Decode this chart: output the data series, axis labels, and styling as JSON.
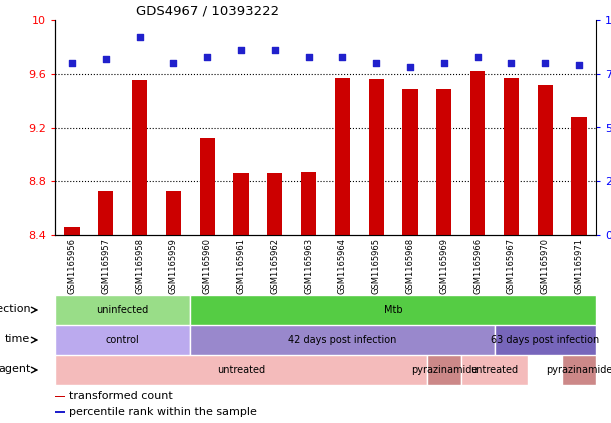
{
  "title": "GDS4967 / 10393222",
  "samples": [
    "GSM1165956",
    "GSM1165957",
    "GSM1165958",
    "GSM1165959",
    "GSM1165960",
    "GSM1165961",
    "GSM1165962",
    "GSM1165963",
    "GSM1165964",
    "GSM1165965",
    "GSM1165968",
    "GSM1165969",
    "GSM1165966",
    "GSM1165967",
    "GSM1165970",
    "GSM1165971"
  ],
  "bar_values": [
    8.46,
    8.73,
    9.55,
    8.73,
    9.12,
    8.86,
    8.86,
    8.87,
    9.57,
    9.56,
    9.49,
    9.49,
    9.62,
    9.57,
    9.52,
    9.28
  ],
  "dot_values": [
    80,
    82,
    92,
    80,
    83,
    86,
    86,
    83,
    83,
    80,
    78,
    80,
    83,
    80,
    80,
    79
  ],
  "ylim_left": [
    8.4,
    10.0
  ],
  "ylim_right": [
    0,
    100
  ],
  "yticks_left": [
    8.4,
    8.8,
    9.2,
    9.6,
    10.0
  ],
  "yticks_right": [
    0,
    25,
    50,
    75,
    100
  ],
  "bar_color": "#cc0000",
  "dot_color": "#2020cc",
  "bg_color": "#ffffff",
  "plot_bg": "#ffffff",
  "annotation_rows": [
    {
      "label": "infection",
      "segments": [
        {
          "start": 0,
          "end": 4,
          "text": "uninfected",
          "color": "#99dd88"
        },
        {
          "start": 4,
          "end": 16,
          "text": "Mtb",
          "color": "#55cc44"
        }
      ]
    },
    {
      "label": "time",
      "segments": [
        {
          "start": 0,
          "end": 4,
          "text": "control",
          "color": "#bbaaee"
        },
        {
          "start": 4,
          "end": 13,
          "text": "42 days post infection",
          "color": "#9988cc"
        },
        {
          "start": 13,
          "end": 16,
          "text": "63 days post infection",
          "color": "#7766bb"
        }
      ]
    },
    {
      "label": "agent",
      "segments": [
        {
          "start": 0,
          "end": 11,
          "text": "untreated",
          "color": "#f4bbbb"
        },
        {
          "start": 11,
          "end": 12,
          "text": "pyrazinamide",
          "color": "#cc8888"
        },
        {
          "start": 12,
          "end": 14,
          "text": "untreated",
          "color": "#f4bbbb"
        },
        {
          "start": 15,
          "end": 16,
          "text": "pyrazinamide",
          "color": "#cc8888"
        }
      ]
    }
  ],
  "legend_items": [
    {
      "color": "#cc0000",
      "label": "transformed count"
    },
    {
      "color": "#2020cc",
      "label": "percentile rank within the sample"
    }
  ]
}
